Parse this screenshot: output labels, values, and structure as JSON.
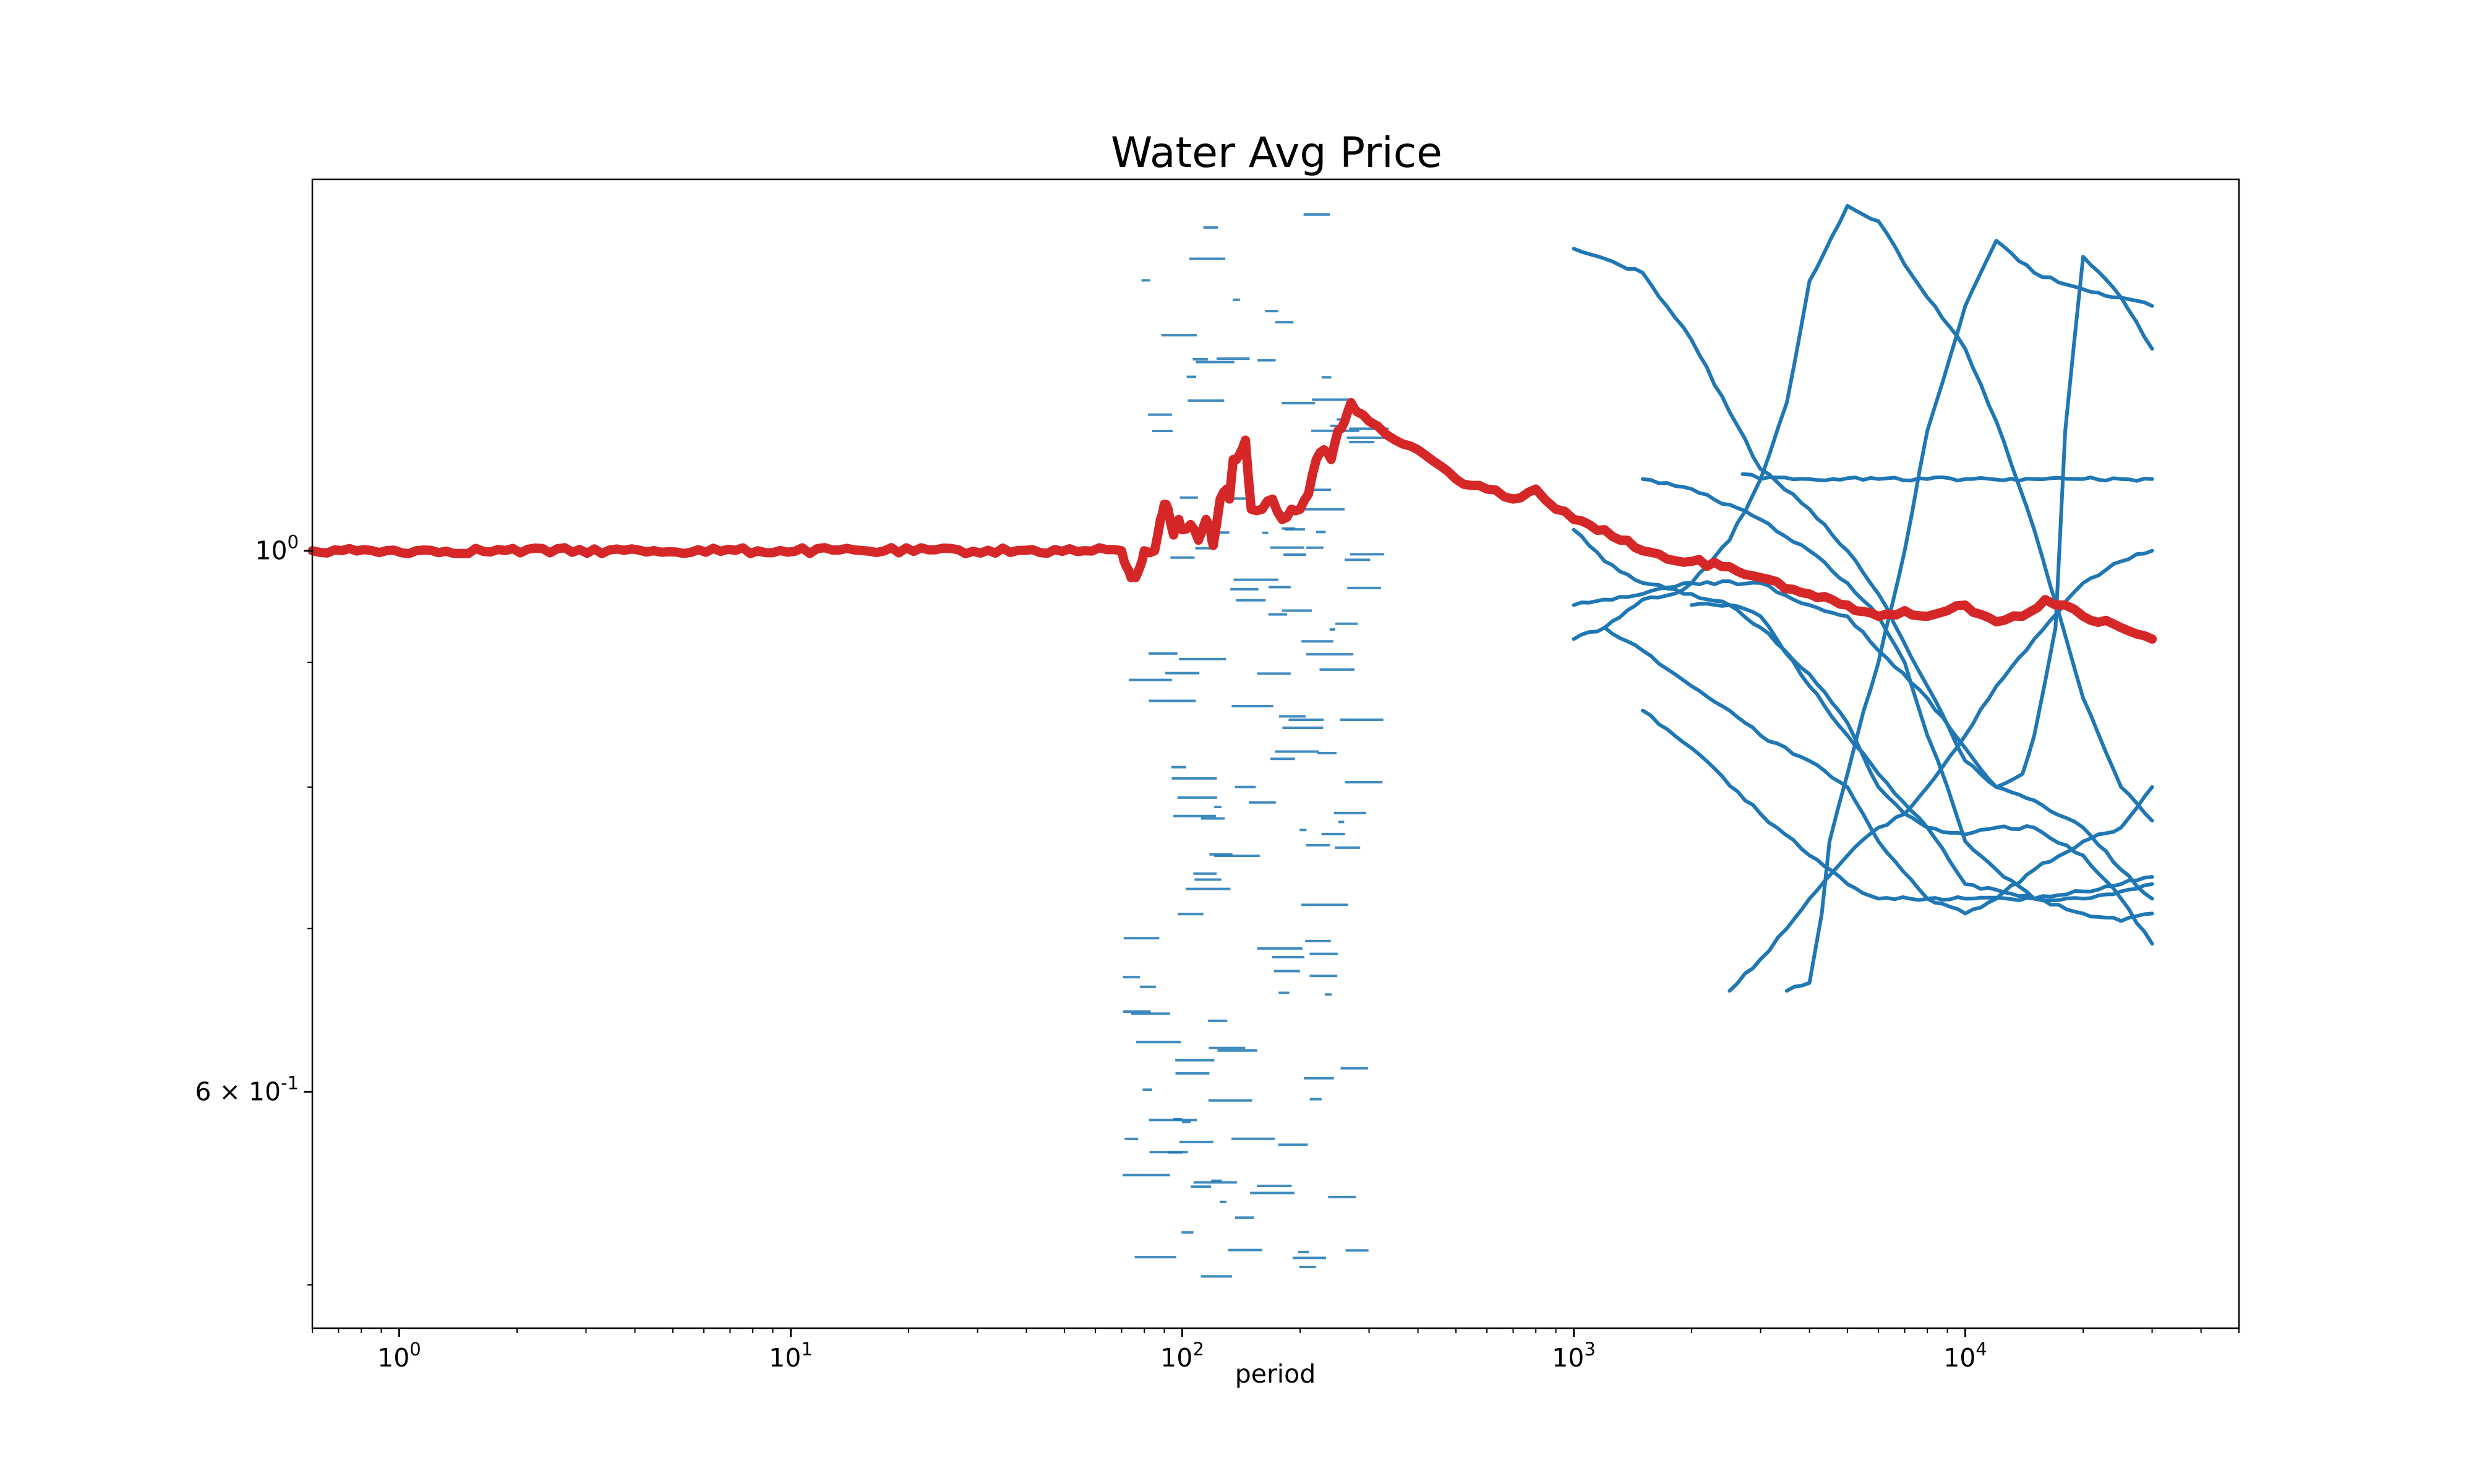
{
  "chart_data": {
    "type": "line",
    "title": "Water Avg Price",
    "xlabel": "period",
    "ylabel": "",
    "xscale": "log",
    "yscale": "log",
    "xlim": [
      0.6,
      50000
    ],
    "ylim": [
      0.48,
      1.42
    ],
    "grid": false,
    "legend": "none",
    "x_ticks": [
      {
        "value": 1,
        "label": "10^0"
      },
      {
        "value": 10,
        "label": "10^1"
      },
      {
        "value": 100,
        "label": "10^2"
      },
      {
        "value": 1000,
        "label": "10^3"
      },
      {
        "value": 10000,
        "label": "10^4"
      }
    ],
    "y_ticks": [
      {
        "value": 1.0,
        "label": "10^0"
      },
      {
        "value": 0.6,
        "label": "6 × 10^-1"
      }
    ],
    "colors": {
      "runs": "#1f77b4",
      "mean": "#d62728"
    },
    "series": [
      {
        "role": "mean",
        "color": "#d62728",
        "x": [
          0.6,
          70,
          72,
          74,
          76,
          78,
          80,
          85,
          88,
          90,
          92,
          95,
          98,
          100,
          105,
          110,
          115,
          118,
          120,
          125,
          130,
          132,
          135,
          140,
          145,
          150,
          160,
          170,
          180,
          190,
          200,
          210,
          220,
          230,
          240,
          250,
          260,
          270,
          280,
          300,
          350,
          400,
          500,
          600,
          700,
          800,
          900,
          1000,
          1200,
          1500,
          2000,
          2500,
          3000,
          4000,
          5000,
          6000,
          7000,
          8000,
          9000,
          10000,
          12000,
          14000,
          16000,
          18000,
          20000,
          25000,
          30000
        ],
        "y": [
          1.0,
          1.0,
          0.985,
          0.975,
          0.975,
          0.985,
          1.0,
          1.0,
          1.03,
          1.045,
          1.04,
          1.015,
          1.03,
          1.02,
          1.025,
          1.01,
          1.03,
          1.02,
          1.005,
          1.05,
          1.06,
          1.05,
          1.09,
          1.095,
          1.11,
          1.04,
          1.04,
          1.05,
          1.03,
          1.04,
          1.04,
          1.055,
          1.09,
          1.1,
          1.09,
          1.12,
          1.13,
          1.15,
          1.14,
          1.13,
          1.11,
          1.1,
          1.07,
          1.06,
          1.05,
          1.06,
          1.04,
          1.03,
          1.02,
          1.0,
          0.99,
          0.985,
          0.975,
          0.96,
          0.95,
          0.94,
          0.945,
          0.94,
          0.945,
          0.95,
          0.935,
          0.94,
          0.955,
          0.95,
          0.94,
          0.93,
          0.92
        ]
      },
      {
        "role": "run",
        "color": "#1f77b4",
        "x": [
          3500,
          4000,
          4300,
          4500,
          5000,
          5500,
          6000,
          6500,
          7000,
          8000,
          10000,
          12000,
          15000,
          20000,
          25000,
          30000
        ],
        "y": [
          0.66,
          0.665,
          0.71,
          0.76,
          0.81,
          0.86,
          0.9,
          0.95,
          1.0,
          1.12,
          1.26,
          1.34,
          1.3,
          1.28,
          1.27,
          1.26
        ]
      },
      {
        "role": "run",
        "color": "#1f77b4",
        "x": [
          1000,
          1200,
          1500,
          1800,
          2000,
          2500,
          3000,
          3500,
          4000,
          5000,
          6000,
          7000,
          8000,
          10000,
          12000,
          15000,
          20000,
          25000,
          30000
        ],
        "y": [
          0.92,
          0.93,
          0.955,
          0.96,
          0.97,
          1.01,
          1.07,
          1.15,
          1.29,
          1.385,
          1.365,
          1.31,
          1.27,
          1.21,
          1.13,
          1.02,
          0.87,
          0.8,
          0.775
        ]
      },
      {
        "role": "run",
        "color": "#1f77b4",
        "x": [
          1000,
          1500,
          2000,
          2500,
          3000,
          4000,
          5000,
          6000,
          8000,
          10000,
          12000,
          14000,
          15000,
          17000,
          18000,
          20000,
          25000,
          30000
        ],
        "y": [
          1.33,
          1.3,
          1.22,
          1.14,
          1.08,
          1.04,
          1.0,
          0.96,
          0.88,
          0.82,
          0.8,
          0.81,
          0.84,
          0.93,
          1.12,
          1.32,
          1.27,
          1.21
        ]
      },
      {
        "role": "run",
        "color": "#1f77b4",
        "x": [
          2700,
          3000,
          4000,
          6000,
          8000,
          10000,
          15000,
          20000,
          25000,
          30000
        ],
        "y": [
          1.075,
          1.07,
          1.07,
          1.07,
          1.07,
          1.07,
          1.07,
          1.07,
          1.07,
          1.07
        ]
      },
      {
        "role": "run",
        "color": "#1f77b4",
        "x": [
          1500,
          2000,
          3000,
          4000,
          5000,
          6000,
          7000,
          8000,
          9000,
          10000,
          12000,
          15000,
          20000,
          25000,
          30000
        ],
        "y": [
          1.07,
          1.06,
          1.03,
          1.0,
          0.97,
          0.94,
          0.9,
          0.84,
          0.8,
          0.76,
          0.74,
          0.72,
          0.71,
          0.705,
          0.71
        ]
      },
      {
        "role": "run",
        "color": "#1f77b4",
        "x": [
          1000,
          1500,
          2000,
          3000,
          4000,
          5000,
          6000,
          8000,
          10000,
          12000,
          15000,
          20000,
          25000,
          30000
        ],
        "y": [
          0.95,
          0.96,
          0.97,
          0.97,
          0.95,
          0.94,
          0.91,
          0.87,
          0.83,
          0.8,
          0.79,
          0.77,
          0.74,
          0.72
        ]
      },
      {
        "role": "run",
        "color": "#1f77b4",
        "x": [
          2500,
          3000,
          3500,
          4000,
          5000,
          6000,
          7000,
          8000,
          10000,
          12000,
          15000,
          20000,
          25000,
          30000
        ],
        "y": [
          0.66,
          0.68,
          0.7,
          0.72,
          0.75,
          0.77,
          0.78,
          0.8,
          0.84,
          0.88,
          0.92,
          0.97,
          0.99,
          1.0
        ]
      },
      {
        "role": "run",
        "color": "#1f77b4",
        "x": [
          1200,
          1500,
          2000,
          2500,
          3000,
          4000,
          5000,
          6000,
          8000,
          10000,
          12000,
          15000,
          20000,
          25000,
          30000
        ],
        "y": [
          0.93,
          0.91,
          0.88,
          0.86,
          0.84,
          0.82,
          0.8,
          0.76,
          0.72,
          0.71,
          0.72,
          0.74,
          0.76,
          0.77,
          0.8
        ]
      },
      {
        "role": "run",
        "color": "#1f77b4",
        "x": [
          1500,
          2000,
          3000,
          4000,
          5000,
          6000,
          8000,
          10000,
          15000,
          20000,
          25000,
          30000
        ],
        "y": [
          0.86,
          0.83,
          0.78,
          0.75,
          0.73,
          0.72,
          0.72,
          0.72,
          0.72,
          0.72,
          0.725,
          0.73
        ]
      },
      {
        "role": "run",
        "color": "#1f77b4",
        "x": [
          2000,
          2500,
          3000,
          4000,
          5000,
          6000,
          7000,
          8000,
          10000,
          12000,
          15000,
          20000,
          25000,
          30000
        ],
        "y": [
          0.95,
          0.95,
          0.93,
          0.89,
          0.85,
          0.8,
          0.78,
          0.77,
          0.765,
          0.77,
          0.77,
          0.75,
          0.72,
          0.69
        ]
      },
      {
        "role": "run",
        "color": "#1f77b4",
        "x": [
          1000,
          1200,
          1500,
          2000,
          2500,
          3000,
          4000,
          5000,
          6000,
          8000,
          10000,
          15000,
          20000,
          25000,
          30000
        ],
        "y": [
          1.02,
          0.99,
          0.97,
          0.96,
          0.95,
          0.94,
          0.88,
          0.84,
          0.81,
          0.77,
          0.73,
          0.72,
          0.725,
          0.73,
          0.735
        ]
      }
    ]
  }
}
